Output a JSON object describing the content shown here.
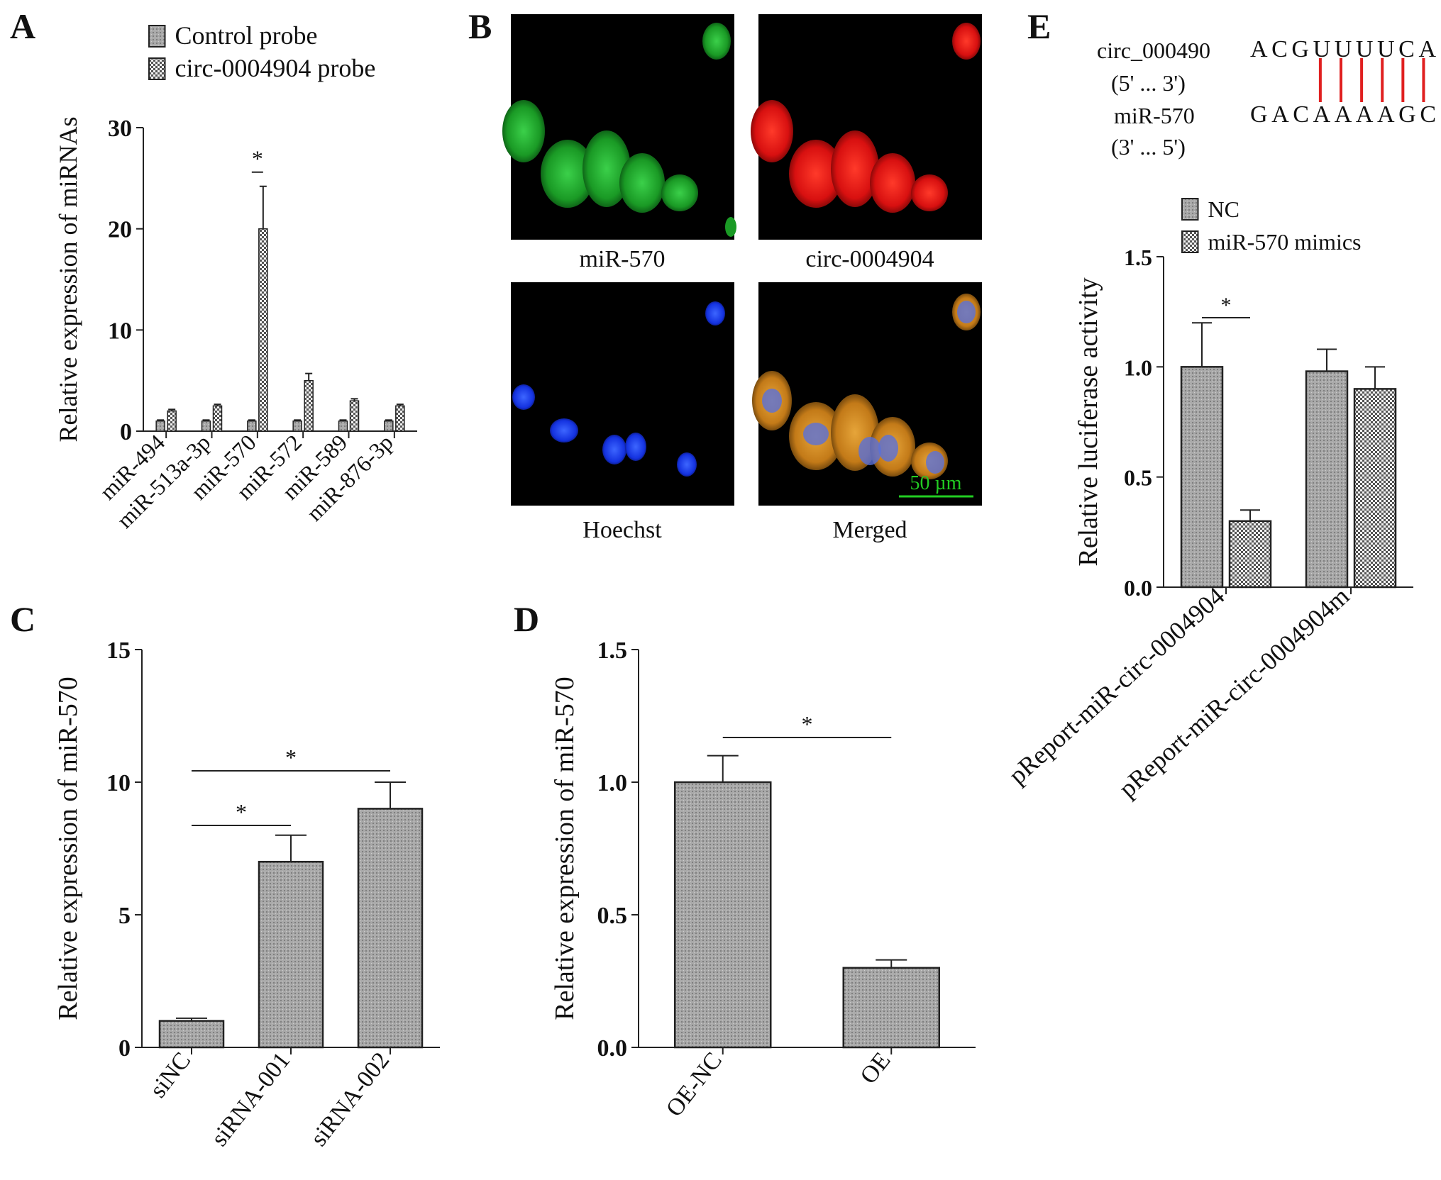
{
  "panels": {
    "a": "A",
    "b": "B",
    "c": "C",
    "d": "D",
    "e": "E"
  },
  "colors": {
    "bar_fill": "#a9a9a9",
    "hatch_fill": "#d9d9d9",
    "axis": "#222222",
    "pairing_line": "#e02020",
    "scale_bar": "#22cc22",
    "mir_channel": "#1fae2a",
    "circ_channel": "#e01818",
    "hoechst_channel": "#1a3cff",
    "merged_channel": "#e0a020"
  },
  "panel_b": {
    "labels": {
      "mir": "miR-570",
      "circ": "circ-0004904",
      "hoechst": "Hoechst",
      "merged": "Merged"
    },
    "scale_bar_label": "50 µm"
  },
  "panel_e_pairing": {
    "circ_name": "circ_000490",
    "circ_dir": "(5' ... 3')",
    "circ_seq": "ACGUUUUCA",
    "mir_name": "miR-570",
    "mir_dir": "(3' ... 5')",
    "mir_seq": "GACAAAAGC",
    "paired_positions": [
      3,
      4,
      5,
      6,
      7,
      8
    ]
  },
  "chart_data": [
    {
      "panel": "A",
      "type": "bar",
      "categories": [
        "miR-494",
        "miR-513a-3p",
        "miR-570",
        "miR-572",
        "miR-589",
        "miR-876-3p"
      ],
      "series": [
        {
          "name": "Control probe",
          "values": [
            1,
            1,
            1,
            1,
            1,
            1
          ],
          "errors": [
            0.1,
            0.1,
            0.1,
            0.1,
            0.1,
            0.1
          ]
        },
        {
          "name": "circ-0004904 probe",
          "values": [
            2,
            2.5,
            20,
            5,
            3,
            2.5
          ],
          "errors": [
            0.15,
            0.15,
            4.2,
            0.7,
            0.2,
            0.15
          ]
        }
      ],
      "ylabel": "Relative expression of miRNAs",
      "ylim": [
        0,
        30
      ],
      "yticks": [
        0,
        10,
        20,
        30
      ],
      "significance": [
        {
          "from": 2,
          "to": 2,
          "label": "*"
        }
      ],
      "legend": "top"
    },
    {
      "panel": "C",
      "type": "bar",
      "categories": [
        "siNC",
        "siRNA-001",
        "siRNA-002"
      ],
      "values": [
        1,
        7,
        9
      ],
      "errors": [
        0.1,
        1,
        1
      ],
      "ylabel": "Relative expression of miR-570",
      "ylim": [
        0,
        15
      ],
      "yticks": [
        0,
        5,
        10,
        15
      ],
      "significance": [
        {
          "from": 0,
          "to": 1,
          "label": "*"
        },
        {
          "from": 0,
          "to": 2,
          "label": "*"
        }
      ]
    },
    {
      "panel": "D",
      "type": "bar",
      "categories": [
        "OE-NC",
        "OE"
      ],
      "values": [
        1.0,
        0.3
      ],
      "errors": [
        0.1,
        0.03
      ],
      "ylabel": "Relative expression of miR-570",
      "ylim": [
        0,
        1.5
      ],
      "yticks": [
        "0.0",
        "0.5",
        "1.0",
        "1.5"
      ],
      "significance": [
        {
          "from": 0,
          "to": 1,
          "label": "*"
        }
      ]
    },
    {
      "panel": "E",
      "type": "bar",
      "categories": [
        "pReport-miR-circ-0004904",
        "pReport-miR-circ-0004904m"
      ],
      "series": [
        {
          "name": "NC",
          "values": [
            1.0,
            0.98
          ],
          "errors": [
            0.2,
            0.1
          ]
        },
        {
          "name": "miR-570 mimics",
          "values": [
            0.3,
            0.9
          ],
          "errors": [
            0.05,
            0.1
          ]
        }
      ],
      "ylabel": "Relative luciferase activity",
      "ylim": [
        0,
        1.5
      ],
      "yticks": [
        "0.0",
        "0.5",
        "1.0",
        "1.5"
      ],
      "significance": [
        {
          "from": 0,
          "to": 0,
          "label": "*"
        }
      ],
      "legend": "top"
    }
  ]
}
